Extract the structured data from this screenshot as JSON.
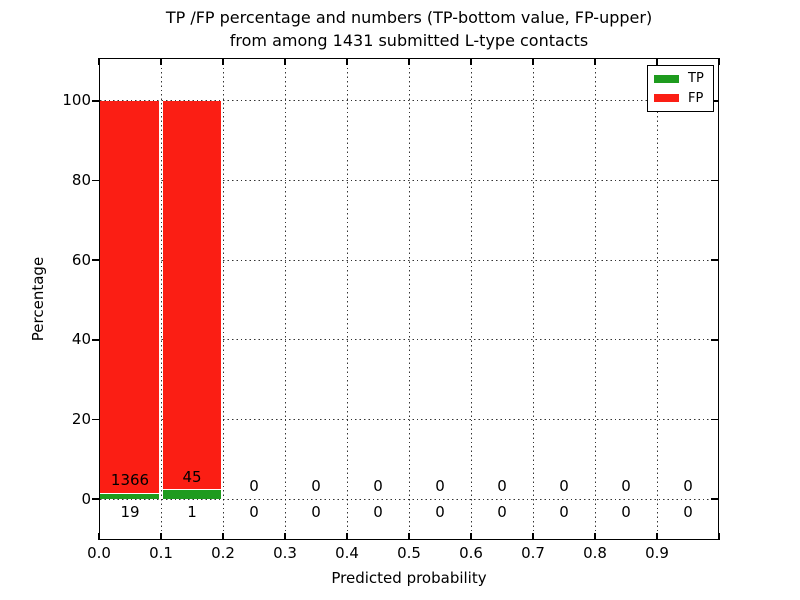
{
  "figure": {
    "title_line1": "TP /FP percentage and numbers (TP-bottom value, FP-upper)",
    "title_line2": "from among 1431 submitted L-type contacts",
    "xlabel": "Predicted probability",
    "ylabel": "Percentage"
  },
  "legend": {
    "items": [
      {
        "label": "TP",
        "color": "#1e9b1e"
      },
      {
        "label": "FP",
        "color": "#fb1e14"
      }
    ]
  },
  "chart_data": {
    "type": "bar",
    "stacked": true,
    "title": "TP /FP percentage and numbers (TP-bottom value, FP-upper) from among 1431 submitted L-type contacts",
    "xlabel": "Predicted probability",
    "ylabel": "Percentage",
    "total_submitted": 1431,
    "bin_edges": [
      0.0,
      0.1,
      0.2,
      0.3,
      0.4,
      0.5,
      0.6,
      0.7,
      0.8,
      0.9,
      1.0
    ],
    "xticks": [
      "0.0",
      "0.1",
      "0.2",
      "0.3",
      "0.4",
      "0.5",
      "0.6",
      "0.7",
      "0.8",
      "0.9"
    ],
    "yticks": [
      0,
      20,
      40,
      60,
      80,
      100
    ],
    "xlim": [
      0,
      1
    ],
    "ylim": [
      -10.3,
      110.8
    ],
    "grid": true,
    "legend_position": "upper right",
    "series": [
      {
        "name": "TP",
        "color": "#1e9b1e",
        "counts": [
          19,
          1,
          0,
          0,
          0,
          0,
          0,
          0,
          0,
          0
        ],
        "percent": [
          1.37,
          2.17,
          0,
          0,
          0,
          0,
          0,
          0,
          0,
          0
        ]
      },
      {
        "name": "FP",
        "color": "#fb1e14",
        "counts": [
          1366,
          45,
          0,
          0,
          0,
          0,
          0,
          0,
          0,
          0
        ],
        "percent": [
          98.63,
          97.83,
          0,
          0,
          0,
          0,
          0,
          0,
          0,
          0
        ]
      }
    ]
  }
}
